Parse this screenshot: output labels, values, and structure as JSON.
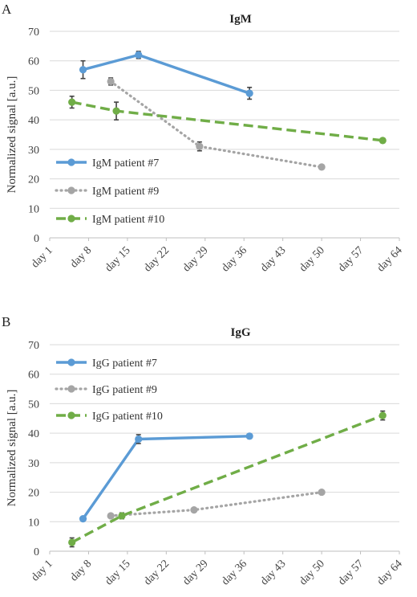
{
  "chart_data": [
    {
      "panel_label": "A",
      "type": "line",
      "title": "IgM",
      "xlabel": "",
      "ylabel": "Normalized signal [a.u.]",
      "ylim": [
        0,
        70
      ],
      "yticks": [
        0,
        10,
        20,
        30,
        40,
        50,
        60,
        70
      ],
      "xlim": [
        1,
        64
      ],
      "xticks": [
        1,
        8,
        15,
        22,
        29,
        36,
        43,
        50,
        57,
        64
      ],
      "xtick_labels": [
        "day 1",
        "day 8",
        "day 15",
        "day 22",
        "day 29",
        "day 36",
        "day 43",
        "day 50",
        "day 57",
        "day 64"
      ],
      "grid": true,
      "legend_position": "bottom-left",
      "series": [
        {
          "name": "IgM patient #7",
          "color": "#5b9bd5",
          "style": "solid",
          "points": [
            {
              "x": 7,
              "y": 57,
              "err": 3
            },
            {
              "x": 17,
              "y": 62,
              "err": 1.2
            },
            {
              "x": 37,
              "y": 49,
              "err": 2
            }
          ]
        },
        {
          "name": "IgM patient #9",
          "color": "#a5a5a5",
          "style": "dotted",
          "points": [
            {
              "x": 12,
              "y": 53,
              "err": 1.2
            },
            {
              "x": 28,
              "y": 31,
              "err": 1.5
            },
            {
              "x": 50,
              "y": 24,
              "err": 0
            }
          ]
        },
        {
          "name": "IgM patient #10",
          "color": "#70ad47",
          "style": "dashed",
          "points": [
            {
              "x": 5,
              "y": 46,
              "err": 2
            },
            {
              "x": 13,
              "y": 43,
              "err": 3
            },
            {
              "x": 61,
              "y": 33,
              "err": 0
            }
          ]
        }
      ]
    },
    {
      "panel_label": "B",
      "type": "line",
      "title": "IgG",
      "xlabel": "",
      "ylabel": "Normalized signal [a.u.]",
      "ylim": [
        0,
        70
      ],
      "yticks": [
        0,
        10,
        20,
        30,
        40,
        50,
        60,
        70
      ],
      "xlim": [
        1,
        64
      ],
      "xticks": [
        1,
        8,
        15,
        22,
        29,
        36,
        43,
        50,
        57,
        64
      ],
      "xtick_labels": [
        "day 1",
        "day 8",
        "day 15",
        "day 22",
        "day 29",
        "day 36",
        "day 43",
        "day 50",
        "day 57",
        "day 64"
      ],
      "grid": true,
      "legend_position": "top-left",
      "series": [
        {
          "name": "IgG patient #7",
          "color": "#5b9bd5",
          "style": "solid",
          "points": [
            {
              "x": 7,
              "y": 11,
              "err": 0
            },
            {
              "x": 17,
              "y": 38,
              "err": 1.5
            },
            {
              "x": 37,
              "y": 39,
              "err": 0
            }
          ]
        },
        {
          "name": "IgG patient #9",
          "color": "#a5a5a5",
          "style": "dotted",
          "points": [
            {
              "x": 12,
              "y": 12,
              "err": 0
            },
            {
              "x": 27,
              "y": 14,
              "err": 0
            },
            {
              "x": 50,
              "y": 20,
              "err": 0
            }
          ]
        },
        {
          "name": "IgG patient #10",
          "color": "#70ad47",
          "style": "dashed",
          "points": [
            {
              "x": 5,
              "y": 3,
              "err": 1.5
            },
            {
              "x": 14,
              "y": 12,
              "err": 1
            },
            {
              "x": 61,
              "y": 46,
              "err": 1.5
            }
          ]
        }
      ]
    }
  ]
}
